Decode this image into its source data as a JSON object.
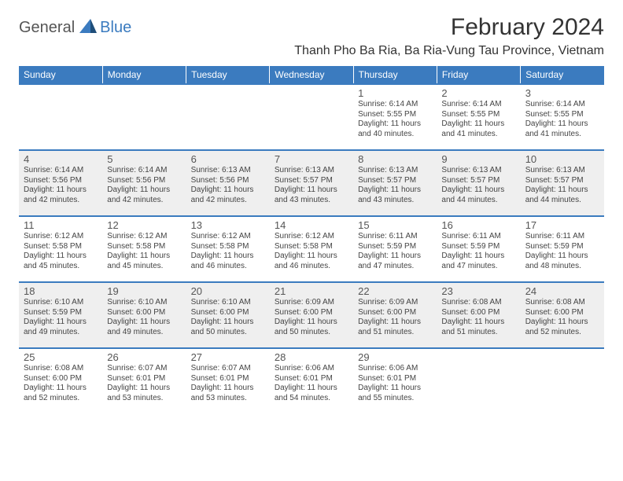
{
  "logo": {
    "general": "General",
    "blue": "Blue"
  },
  "title": "February 2024",
  "location": "Thanh Pho Ba Ria, Ba Ria-Vung Tau Province, Vietnam",
  "weekdays": [
    "Sunday",
    "Monday",
    "Tuesday",
    "Wednesday",
    "Thursday",
    "Friday",
    "Saturday"
  ],
  "colors": {
    "header_bg": "#3b7bbf",
    "header_text": "#ffffff",
    "alt_row_bg": "#efefef",
    "text": "#444444",
    "border": "#3b7bbf"
  },
  "typography": {
    "title_fontsize": 30,
    "location_fontsize": 16,
    "weekday_fontsize": 12,
    "daynum_fontsize": 13,
    "body_fontsize": 10
  },
  "layout": {
    "columns": 7,
    "rows": 5,
    "start_weekday_index": 4
  },
  "rows": [
    [
      {
        "empty": true
      },
      {
        "empty": true
      },
      {
        "empty": true
      },
      {
        "empty": true
      },
      {
        "num": "1",
        "sunrise": "Sunrise: 6:14 AM",
        "sunset": "Sunset: 5:55 PM",
        "daylight1": "Daylight: 11 hours",
        "daylight2": "and 40 minutes."
      },
      {
        "num": "2",
        "sunrise": "Sunrise: 6:14 AM",
        "sunset": "Sunset: 5:55 PM",
        "daylight1": "Daylight: 11 hours",
        "daylight2": "and 41 minutes."
      },
      {
        "num": "3",
        "sunrise": "Sunrise: 6:14 AM",
        "sunset": "Sunset: 5:55 PM",
        "daylight1": "Daylight: 11 hours",
        "daylight2": "and 41 minutes."
      }
    ],
    [
      {
        "num": "4",
        "sunrise": "Sunrise: 6:14 AM",
        "sunset": "Sunset: 5:56 PM",
        "daylight1": "Daylight: 11 hours",
        "daylight2": "and 42 minutes."
      },
      {
        "num": "5",
        "sunrise": "Sunrise: 6:14 AM",
        "sunset": "Sunset: 5:56 PM",
        "daylight1": "Daylight: 11 hours",
        "daylight2": "and 42 minutes."
      },
      {
        "num": "6",
        "sunrise": "Sunrise: 6:13 AM",
        "sunset": "Sunset: 5:56 PM",
        "daylight1": "Daylight: 11 hours",
        "daylight2": "and 42 minutes."
      },
      {
        "num": "7",
        "sunrise": "Sunrise: 6:13 AM",
        "sunset": "Sunset: 5:57 PM",
        "daylight1": "Daylight: 11 hours",
        "daylight2": "and 43 minutes."
      },
      {
        "num": "8",
        "sunrise": "Sunrise: 6:13 AM",
        "sunset": "Sunset: 5:57 PM",
        "daylight1": "Daylight: 11 hours",
        "daylight2": "and 43 minutes."
      },
      {
        "num": "9",
        "sunrise": "Sunrise: 6:13 AM",
        "sunset": "Sunset: 5:57 PM",
        "daylight1": "Daylight: 11 hours",
        "daylight2": "and 44 minutes."
      },
      {
        "num": "10",
        "sunrise": "Sunrise: 6:13 AM",
        "sunset": "Sunset: 5:57 PM",
        "daylight1": "Daylight: 11 hours",
        "daylight2": "and 44 minutes."
      }
    ],
    [
      {
        "num": "11",
        "sunrise": "Sunrise: 6:12 AM",
        "sunset": "Sunset: 5:58 PM",
        "daylight1": "Daylight: 11 hours",
        "daylight2": "and 45 minutes."
      },
      {
        "num": "12",
        "sunrise": "Sunrise: 6:12 AM",
        "sunset": "Sunset: 5:58 PM",
        "daylight1": "Daylight: 11 hours",
        "daylight2": "and 45 minutes."
      },
      {
        "num": "13",
        "sunrise": "Sunrise: 6:12 AM",
        "sunset": "Sunset: 5:58 PM",
        "daylight1": "Daylight: 11 hours",
        "daylight2": "and 46 minutes."
      },
      {
        "num": "14",
        "sunrise": "Sunrise: 6:12 AM",
        "sunset": "Sunset: 5:58 PM",
        "daylight1": "Daylight: 11 hours",
        "daylight2": "and 46 minutes."
      },
      {
        "num": "15",
        "sunrise": "Sunrise: 6:11 AM",
        "sunset": "Sunset: 5:59 PM",
        "daylight1": "Daylight: 11 hours",
        "daylight2": "and 47 minutes."
      },
      {
        "num": "16",
        "sunrise": "Sunrise: 6:11 AM",
        "sunset": "Sunset: 5:59 PM",
        "daylight1": "Daylight: 11 hours",
        "daylight2": "and 47 minutes."
      },
      {
        "num": "17",
        "sunrise": "Sunrise: 6:11 AM",
        "sunset": "Sunset: 5:59 PM",
        "daylight1": "Daylight: 11 hours",
        "daylight2": "and 48 minutes."
      }
    ],
    [
      {
        "num": "18",
        "sunrise": "Sunrise: 6:10 AM",
        "sunset": "Sunset: 5:59 PM",
        "daylight1": "Daylight: 11 hours",
        "daylight2": "and 49 minutes."
      },
      {
        "num": "19",
        "sunrise": "Sunrise: 6:10 AM",
        "sunset": "Sunset: 6:00 PM",
        "daylight1": "Daylight: 11 hours",
        "daylight2": "and 49 minutes."
      },
      {
        "num": "20",
        "sunrise": "Sunrise: 6:10 AM",
        "sunset": "Sunset: 6:00 PM",
        "daylight1": "Daylight: 11 hours",
        "daylight2": "and 50 minutes."
      },
      {
        "num": "21",
        "sunrise": "Sunrise: 6:09 AM",
        "sunset": "Sunset: 6:00 PM",
        "daylight1": "Daylight: 11 hours",
        "daylight2": "and 50 minutes."
      },
      {
        "num": "22",
        "sunrise": "Sunrise: 6:09 AM",
        "sunset": "Sunset: 6:00 PM",
        "daylight1": "Daylight: 11 hours",
        "daylight2": "and 51 minutes."
      },
      {
        "num": "23",
        "sunrise": "Sunrise: 6:08 AM",
        "sunset": "Sunset: 6:00 PM",
        "daylight1": "Daylight: 11 hours",
        "daylight2": "and 51 minutes."
      },
      {
        "num": "24",
        "sunrise": "Sunrise: 6:08 AM",
        "sunset": "Sunset: 6:00 PM",
        "daylight1": "Daylight: 11 hours",
        "daylight2": "and 52 minutes."
      }
    ],
    [
      {
        "num": "25",
        "sunrise": "Sunrise: 6:08 AM",
        "sunset": "Sunset: 6:00 PM",
        "daylight1": "Daylight: 11 hours",
        "daylight2": "and 52 minutes."
      },
      {
        "num": "26",
        "sunrise": "Sunrise: 6:07 AM",
        "sunset": "Sunset: 6:01 PM",
        "daylight1": "Daylight: 11 hours",
        "daylight2": "and 53 minutes."
      },
      {
        "num": "27",
        "sunrise": "Sunrise: 6:07 AM",
        "sunset": "Sunset: 6:01 PM",
        "daylight1": "Daylight: 11 hours",
        "daylight2": "and 53 minutes."
      },
      {
        "num": "28",
        "sunrise": "Sunrise: 6:06 AM",
        "sunset": "Sunset: 6:01 PM",
        "daylight1": "Daylight: 11 hours",
        "daylight2": "and 54 minutes."
      },
      {
        "num": "29",
        "sunrise": "Sunrise: 6:06 AM",
        "sunset": "Sunset: 6:01 PM",
        "daylight1": "Daylight: 11 hours",
        "daylight2": "and 55 minutes."
      },
      {
        "empty": true
      },
      {
        "empty": true
      }
    ]
  ]
}
